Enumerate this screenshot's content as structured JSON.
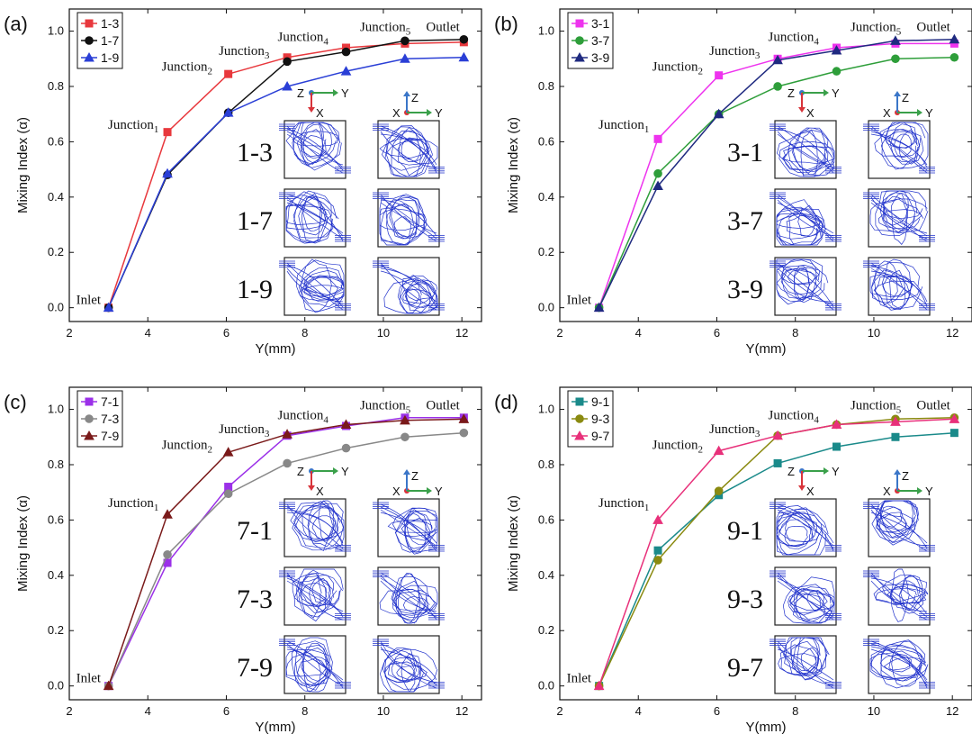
{
  "chart_data": [
    {
      "type": "line",
      "panel_label": "(a)",
      "xlabel": "Y(mm)",
      "ylabel": "Mixing Index (α)",
      "xlim": [
        2,
        12.5
      ],
      "ylim": [
        -0.05,
        1.08
      ],
      "xticks": [
        2,
        4,
        6,
        8,
        10,
        12
      ],
      "yticks": [
        0.0,
        0.2,
        0.4,
        0.6,
        0.8,
        1.0
      ],
      "x": [
        3.0,
        4.5,
        6.05,
        7.55,
        9.05,
        10.55,
        12.05
      ],
      "series": [
        {
          "name": "1-3",
          "color": "#e8383d",
          "marker": "square",
          "values": [
            0.0,
            0.635,
            0.845,
            0.905,
            0.94,
            0.955,
            0.96
          ]
        },
        {
          "name": "1-7",
          "color": "#111111",
          "marker": "circle",
          "values": [
            0.0,
            0.48,
            0.705,
            0.89,
            0.925,
            0.965,
            0.97
          ]
        },
        {
          "name": "1-9",
          "color": "#2a3fd6",
          "marker": "triangle",
          "values": [
            0.0,
            0.485,
            0.705,
            0.8,
            0.855,
            0.9,
            0.905
          ]
        }
      ],
      "annotations": {
        "inlet": "Inlet",
        "j1": "Junction",
        "j2": "Junction",
        "j3": "Junction",
        "j4": "Junction",
        "j5": "Junction",
        "outlet": "Outlet",
        "s1": "1",
        "s2": "2",
        "s3": "3",
        "s4": "4",
        "s5": "5"
      },
      "inset_labels": [
        "1-3",
        "1-7",
        "1-9"
      ],
      "axes_icon": {
        "left": [
          "Z",
          "Y",
          "X"
        ],
        "right": [
          "Z",
          "X",
          "Y"
        ]
      }
    },
    {
      "type": "line",
      "panel_label": "(b)",
      "xlabel": "Y(mm)",
      "ylabel": "Mixing Index (α)",
      "xlim": [
        2,
        12.5
      ],
      "ylim": [
        -0.05,
        1.08
      ],
      "xticks": [
        2,
        4,
        6,
        8,
        10,
        12
      ],
      "yticks": [
        0.0,
        0.2,
        0.4,
        0.6,
        0.8,
        1.0
      ],
      "x": [
        3.0,
        4.5,
        6.05,
        7.55,
        9.05,
        10.55,
        12.05
      ],
      "series": [
        {
          "name": "3-1",
          "color": "#ee33ee",
          "marker": "square",
          "values": [
            0.0,
            0.61,
            0.84,
            0.9,
            0.94,
            0.955,
            0.955
          ]
        },
        {
          "name": "3-7",
          "color": "#2e9e3a",
          "marker": "circle",
          "values": [
            0.0,
            0.485,
            0.7,
            0.8,
            0.855,
            0.9,
            0.905
          ]
        },
        {
          "name": "3-9",
          "color": "#1f2a80",
          "marker": "triangle",
          "values": [
            0.0,
            0.44,
            0.7,
            0.895,
            0.93,
            0.965,
            0.97
          ]
        }
      ],
      "annotations": {
        "inlet": "Inlet",
        "j1": "Junction",
        "j2": "Junction",
        "j3": "Junction",
        "j4": "Junction",
        "j5": "Junction",
        "outlet": "Outlet",
        "s1": "1",
        "s2": "2",
        "s3": "3",
        "s4": "4",
        "s5": "5"
      },
      "inset_labels": [
        "3-1",
        "3-7",
        "3-9"
      ],
      "axes_icon": {
        "left": [
          "Z",
          "Y",
          "X"
        ],
        "right": [
          "Z",
          "X",
          "Y"
        ]
      }
    },
    {
      "type": "line",
      "panel_label": "(c)",
      "xlabel": "Y(mm)",
      "ylabel": "Mixing Index (α)",
      "xlim": [
        2,
        12.5
      ],
      "ylim": [
        -0.05,
        1.08
      ],
      "xticks": [
        2,
        4,
        6,
        8,
        10,
        12
      ],
      "yticks": [
        0.0,
        0.2,
        0.4,
        0.6,
        0.8,
        1.0
      ],
      "x": [
        3.0,
        4.5,
        6.05,
        7.55,
        9.05,
        10.55,
        12.05
      ],
      "series": [
        {
          "name": "7-1",
          "color": "#9b30e8",
          "marker": "square",
          "values": [
            0.0,
            0.445,
            0.72,
            0.905,
            0.94,
            0.97,
            0.97
          ]
        },
        {
          "name": "7-3",
          "color": "#888888",
          "marker": "circle",
          "values": [
            0.0,
            0.475,
            0.695,
            0.805,
            0.86,
            0.9,
            0.915
          ]
        },
        {
          "name": "7-9",
          "color": "#7a1a1a",
          "marker": "triangle",
          "values": [
            0.0,
            0.62,
            0.845,
            0.91,
            0.945,
            0.96,
            0.965
          ]
        }
      ],
      "annotations": {
        "inlet": "Inlet",
        "j1": "Junction",
        "j2": "Junction",
        "j3": "Junction",
        "j4": "Junction",
        "j5": "Junction",
        "outlet": "Outlet",
        "s1": "1",
        "s2": "2",
        "s3": "3",
        "s4": "4",
        "s5": "5"
      },
      "inset_labels": [
        "7-1",
        "7-3",
        "7-9"
      ],
      "axes_icon": {
        "left": [
          "Z",
          "Y",
          "X"
        ],
        "right": [
          "Z",
          "X",
          "Y"
        ]
      }
    },
    {
      "type": "line",
      "panel_label": "(d)",
      "xlabel": "Y(mm)",
      "ylabel": "Mixing Index (α)",
      "xlim": [
        2,
        12.5
      ],
      "ylim": [
        -0.05,
        1.08
      ],
      "xticks": [
        2,
        4,
        6,
        8,
        10,
        12
      ],
      "yticks": [
        0.0,
        0.2,
        0.4,
        0.6,
        0.8,
        1.0
      ],
      "x": [
        3.0,
        4.5,
        6.05,
        7.55,
        9.05,
        10.55,
        12.05
      ],
      "series": [
        {
          "name": "9-1",
          "color": "#1a8a8a",
          "marker": "square",
          "values": [
            0.0,
            0.49,
            0.69,
            0.805,
            0.865,
            0.9,
            0.915
          ]
        },
        {
          "name": "9-3",
          "color": "#8a8a10",
          "marker": "circle",
          "values": [
            0.0,
            0.455,
            0.705,
            0.905,
            0.945,
            0.965,
            0.97
          ]
        },
        {
          "name": "9-7",
          "color": "#e8307a",
          "marker": "triangle",
          "values": [
            0.0,
            0.6,
            0.85,
            0.905,
            0.945,
            0.955,
            0.965
          ]
        }
      ],
      "annotations": {
        "inlet": "Inlet",
        "j1": "Junction",
        "j2": "Junction",
        "j3": "Junction",
        "j4": "Junction",
        "j5": "Junction",
        "outlet": "Outlet",
        "s1": "1",
        "s2": "2",
        "s3": "3",
        "s4": "4",
        "s5": "5"
      },
      "inset_labels": [
        "9-1",
        "9-3",
        "9-7"
      ],
      "axes_icon": {
        "left": [
          "Z",
          "Y",
          "X"
        ],
        "right": [
          "Z",
          "X",
          "Y"
        ]
      }
    }
  ]
}
